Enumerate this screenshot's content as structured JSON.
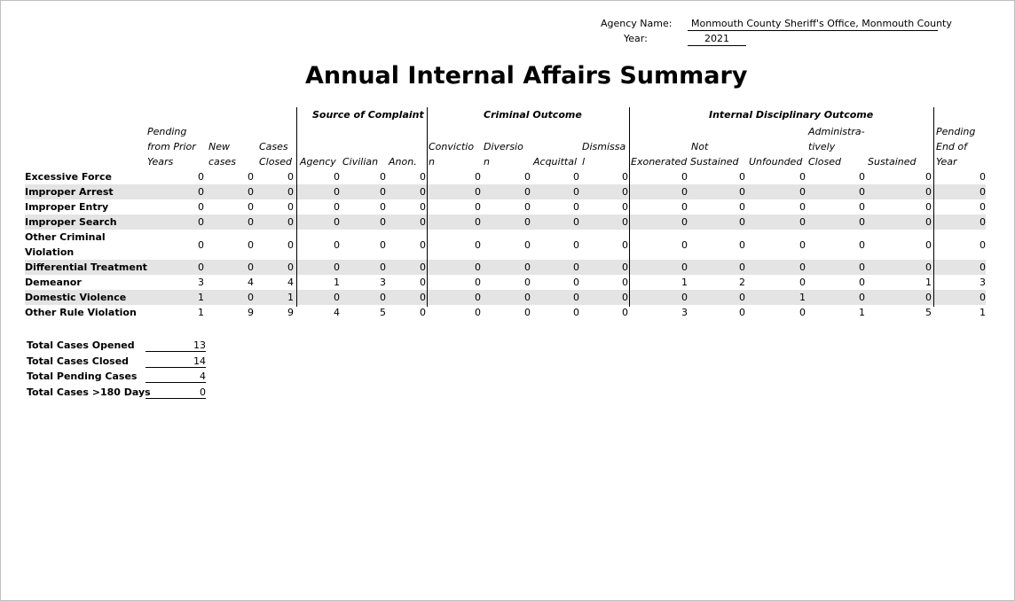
{
  "header": {
    "agency_label": "Agency Name:",
    "agency_value": "Monmouth County Sheriff's Office, Monmouth County",
    "year_label": "Year:",
    "year_value": "2021"
  },
  "title": "Annual Internal Affairs Summary",
  "groups": {
    "source": "Source of Complaint",
    "criminal": "Criminal Outcome",
    "internal": "Internal Disciplinary Outcome"
  },
  "columns": {
    "pending_prior": [
      "Pending",
      "from Prior",
      "Years"
    ],
    "new_cases": "New cases",
    "new_cases_lines": [
      "New",
      "cases"
    ],
    "cases_closed": [
      "Cases",
      "Closed"
    ],
    "agency": "Agency",
    "civilian": "Civilian",
    "anon": "Anon.",
    "conviction": [
      "Convictio",
      "n"
    ],
    "diversion": [
      "Diversio",
      "n"
    ],
    "acquittal": "Acquittal",
    "dismissal": [
      "Dismissa",
      "l"
    ],
    "exonerated": "Exonerated",
    "not_sustained": [
      "Not",
      "Sustained"
    ],
    "unfounded": "Unfounded",
    "admin_closed": [
      "Administra-",
      "tively",
      "Closed"
    ],
    "sustained": "Sustained",
    "pending_end": [
      "Pending",
      "End of",
      "Year"
    ]
  },
  "rows": [
    {
      "label": "Excessive Force",
      "values": [
        "0",
        "0",
        "0",
        "0",
        "0",
        "0",
        "0",
        "0",
        "0",
        "0",
        "0",
        "0",
        "0",
        "0",
        "0",
        "0"
      ]
    },
    {
      "label": "Improper Arrest",
      "values": [
        "0",
        "0",
        "0",
        "0",
        "0",
        "0",
        "0",
        "0",
        "0",
        "0",
        "0",
        "0",
        "0",
        "0",
        "0",
        "0"
      ]
    },
    {
      "label": "Improper Entry",
      "values": [
        "0",
        "0",
        "0",
        "0",
        "0",
        "0",
        "0",
        "0",
        "0",
        "0",
        "0",
        "0",
        "0",
        "0",
        "0",
        "0"
      ]
    },
    {
      "label": "Improper Search",
      "values": [
        "0",
        "0",
        "0",
        "0",
        "0",
        "0",
        "0",
        "0",
        "0",
        "0",
        "0",
        "0",
        "0",
        "0",
        "0",
        "0"
      ]
    },
    {
      "label": "Other Criminal Violation",
      "values": [
        "0",
        "0",
        "0",
        "0",
        "0",
        "0",
        "0",
        "0",
        "0",
        "0",
        "0",
        "0",
        "0",
        "0",
        "0",
        "0"
      ]
    },
    {
      "label": "Differential Treatment",
      "values": [
        "0",
        "0",
        "0",
        "0",
        "0",
        "0",
        "0",
        "0",
        "0",
        "0",
        "0",
        "0",
        "0",
        "0",
        "0",
        "0"
      ]
    },
    {
      "label": "Demeanor",
      "values": [
        "3",
        "4",
        "4",
        "1",
        "3",
        "0",
        "0",
        "0",
        "0",
        "0",
        "1",
        "2",
        "0",
        "0",
        "1",
        "3"
      ]
    },
    {
      "label": "Domestic Violence",
      "values": [
        "1",
        "0",
        "1",
        "0",
        "0",
        "0",
        "0",
        "0",
        "0",
        "0",
        "0",
        "0",
        "1",
        "0",
        "0",
        "0"
      ]
    },
    {
      "label": "Other Rule Violation",
      "values": [
        "1",
        "9",
        "9",
        "4",
        "5",
        "0",
        "0",
        "0",
        "0",
        "0",
        "3",
        "0",
        "0",
        "1",
        "5",
        "1"
      ]
    }
  ],
  "totals": [
    {
      "label": "Total Cases Opened",
      "value": "13"
    },
    {
      "label": "Total Cases Closed",
      "value": "14"
    },
    {
      "label": "Total Pending Cases",
      "value": "4"
    },
    {
      "label": "Total Cases >180 Days",
      "value": "0"
    }
  ]
}
